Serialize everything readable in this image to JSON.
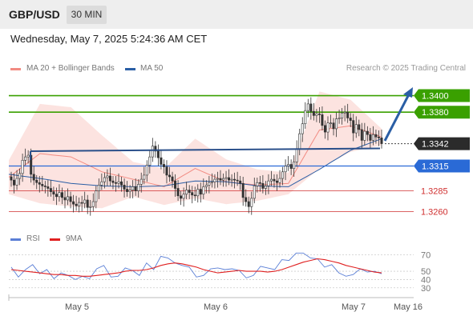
{
  "header": {
    "symbol": "GBP/USD",
    "timeframe": "30 MIN"
  },
  "datetime": "Wednesday, May 7, 2025 5:24:36 AM CET",
  "legend": {
    "ma20": {
      "label": "MA 20 + Bollinger Bands",
      "color": "#f28b82"
    },
    "ma50": {
      "label": "MA 50",
      "color": "#2a5ea5"
    }
  },
  "research": "Research © 2025 Trading Central",
  "rsi_legend": {
    "rsi": {
      "label": "RSI",
      "color": "#5b7fd6"
    },
    "ma9": {
      "label": "9MA",
      "color": "#e02020"
    }
  },
  "colors": {
    "support_resistance_green": "#3aa000",
    "blue_level": "#2a6ad6",
    "red_level": "#d03030",
    "arrow": "#2a5ea5",
    "bull": "#ffffff",
    "bear": "#333333"
  },
  "chart_data": [
    {
      "type": "candlestick",
      "title": "",
      "ylim": [
        1.3245,
        1.3415
      ],
      "x_labels": [
        "May 5",
        "May 6",
        "May 7",
        "May 16"
      ],
      "levels": [
        {
          "value": 1.34,
          "label": "1.3400",
          "kind": "resistance"
        },
        {
          "value": 1.338,
          "label": "1.3380",
          "kind": "resistance"
        },
        {
          "value": 1.3342,
          "label": "1.3342",
          "kind": "last"
        },
        {
          "value": 1.3315,
          "label": "1.3315",
          "kind": "support"
        },
        {
          "value": 1.3285,
          "label": "1.3285",
          "kind": "support"
        },
        {
          "value": 1.326,
          "label": "1.3260",
          "kind": "support"
        }
      ],
      "close": [
        1.3298,
        1.3292,
        1.33,
        1.3306,
        1.3322,
        1.3326,
        1.3328,
        1.3305,
        1.3298,
        1.3295,
        1.3293,
        1.3291,
        1.329,
        1.3288,
        1.3284,
        1.3281,
        1.3278,
        1.3283,
        1.3277,
        1.3274,
        1.3278,
        1.3272,
        1.3269,
        1.3267,
        1.3271,
        1.327,
        1.3274,
        1.3265,
        1.3266,
        1.3272,
        1.3285,
        1.3292,
        1.3296,
        1.3301,
        1.3303,
        1.3297,
        1.3295,
        1.3294,
        1.3296,
        1.3292,
        1.3287,
        1.3284,
        1.3286,
        1.329,
        1.3285,
        1.3293,
        1.3299,
        1.3304,
        1.3316,
        1.3326,
        1.3339,
        1.3333,
        1.3325,
        1.3317,
        1.3314,
        1.3304,
        1.3302,
        1.3297,
        1.3288,
        1.3279,
        1.3276,
        1.3281,
        1.3286,
        1.3283,
        1.328,
        1.3279,
        1.3287,
        1.3281,
        1.329,
        1.3292,
        1.3295,
        1.3296,
        1.3299,
        1.33,
        1.3298,
        1.33,
        1.3301,
        1.3298,
        1.3299,
        1.3298,
        1.3297,
        1.3294,
        1.3277,
        1.3272,
        1.3266,
        1.3276,
        1.3291,
        1.3295,
        1.3294,
        1.3288,
        1.3291,
        1.3297,
        1.3299,
        1.3297,
        1.3295,
        1.33,
        1.3308,
        1.3315,
        1.3317,
        1.3312,
        1.332,
        1.3336,
        1.3354,
        1.3366,
        1.3382,
        1.339,
        1.3381,
        1.3376,
        1.3378,
        1.3377,
        1.3364,
        1.3356,
        1.3367,
        1.3367,
        1.336,
        1.3372,
        1.3373,
        1.3379,
        1.338,
        1.3373,
        1.337,
        1.3355,
        1.3365,
        1.3359,
        1.3346,
        1.3357,
        1.3353,
        1.3346,
        1.3353,
        1.335,
        1.3349,
        1.3342
      ],
      "ma20_band_upper": [
        1.3322,
        1.339,
        1.3386,
        1.3352,
        1.332,
        1.3312,
        1.3348,
        1.3323,
        1.3311,
        1.3307,
        1.3405,
        1.3395,
        1.336
      ],
      "ma20_band_lower": [
        1.3281,
        1.327,
        1.3266,
        1.3264,
        1.3278,
        1.3268,
        1.3276,
        1.3269,
        1.3273,
        1.3281,
        1.3312,
        1.3332,
        1.334
      ],
      "ma50": [
        1.3305,
        1.33,
        1.3294,
        1.3291,
        1.329,
        1.3291,
        1.3297,
        1.3296,
        1.3291,
        1.329,
        1.3311,
        1.3334,
        1.3348
      ]
    },
    {
      "type": "line",
      "title": "RSI",
      "ylim": [
        24,
        80
      ],
      "y_ticks": [
        70,
        50,
        40,
        30
      ],
      "series": [
        {
          "name": "RSI",
          "values": [
            55,
            43,
            52,
            58,
            47,
            52,
            41,
            48,
            45,
            40,
            44,
            41,
            53,
            57,
            43,
            44,
            54,
            51,
            45,
            60,
            52,
            68,
            66,
            60,
            57,
            55,
            43,
            45,
            53,
            54,
            52,
            53,
            51,
            42,
            45,
            56,
            54,
            52,
            64,
            63,
            72,
            72,
            66,
            65,
            55,
            58,
            48,
            44,
            46,
            53,
            49,
            50,
            47
          ]
        },
        {
          "name": "9MA",
          "values": [
            52,
            51,
            50,
            49,
            48,
            47,
            46,
            46,
            45,
            45,
            44,
            44,
            45,
            46,
            47,
            48,
            50,
            51,
            51,
            52,
            54,
            57,
            59,
            60,
            59,
            57,
            55,
            52,
            50,
            48,
            49,
            50,
            51,
            50,
            50,
            50,
            49,
            50,
            52,
            55,
            58,
            61,
            63,
            65,
            64,
            62,
            60,
            57,
            55,
            53,
            51,
            49,
            48
          ]
        }
      ]
    }
  ]
}
